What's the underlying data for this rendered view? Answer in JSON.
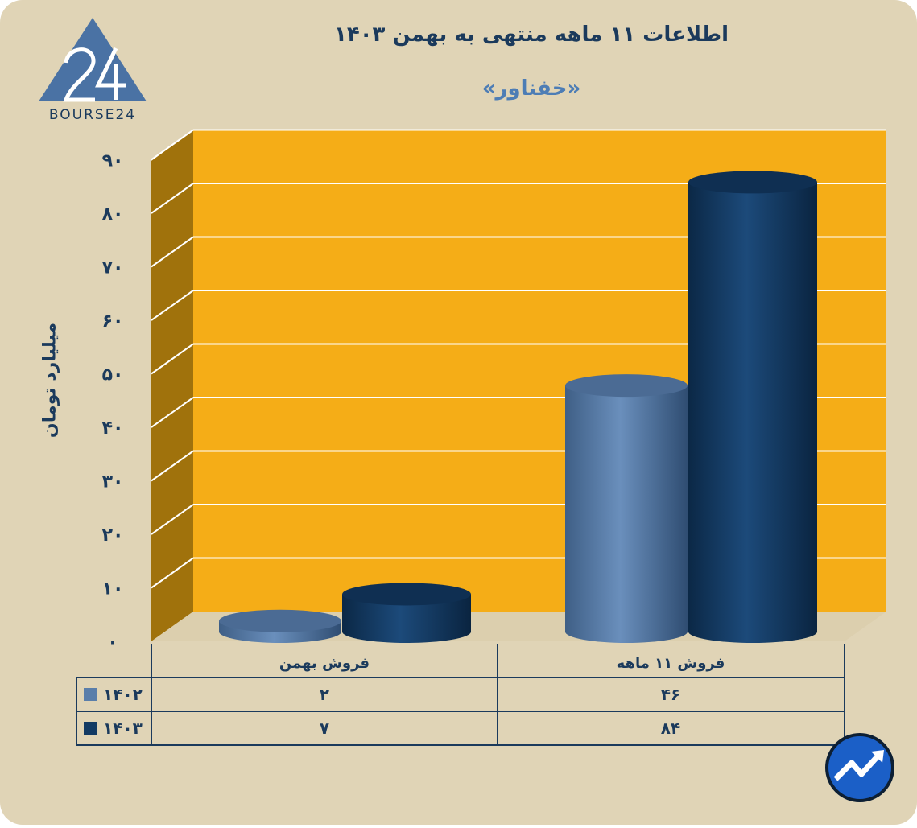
{
  "title": "اطلاعات ۱۱ ماهه منتهی به بهمن ۱۴۰۳",
  "subtitle": "«خفناور»",
  "ylabel": "میلیارد تومان",
  "logo": {
    "text": "BOURSE24",
    "icon": "bourse24-logo"
  },
  "corner_icon": "trend-up-logo-icon",
  "colors": {
    "background": "#e0d4b6",
    "plot_back": "#f5ad17",
    "plot_side": "#a0720c",
    "series_1402": "#5a7eaa",
    "series_1403": "#123a63",
    "text": "#1b3a5c"
  },
  "chart_data": {
    "type": "bar",
    "categories": [
      "فروش بهمن",
      "فروش ۱۱ ماهه"
    ],
    "series": [
      {
        "name": "۱۴۰۲",
        "values": [
          2,
          46
        ],
        "labels": [
          "۲",
          "۴۶"
        ],
        "color": "#5a7eaa"
      },
      {
        "name": "۱۴۰۳",
        "values": [
          7,
          84
        ],
        "labels": [
          "۷",
          "۸۴"
        ],
        "color": "#123a63"
      }
    ],
    "ylim": [
      0,
      90
    ],
    "yticks": [
      0,
      10,
      20,
      30,
      40,
      50,
      60,
      70,
      80,
      90
    ],
    "ytick_labels": [
      "۰",
      "۱۰",
      "۲۰",
      "۳۰",
      "۴۰",
      "۵۰",
      "۶۰",
      "۷۰",
      "۸۰",
      "۹۰"
    ],
    "ylabel": "میلیارد تومان",
    "grid": true,
    "legend": "data-table-left"
  }
}
